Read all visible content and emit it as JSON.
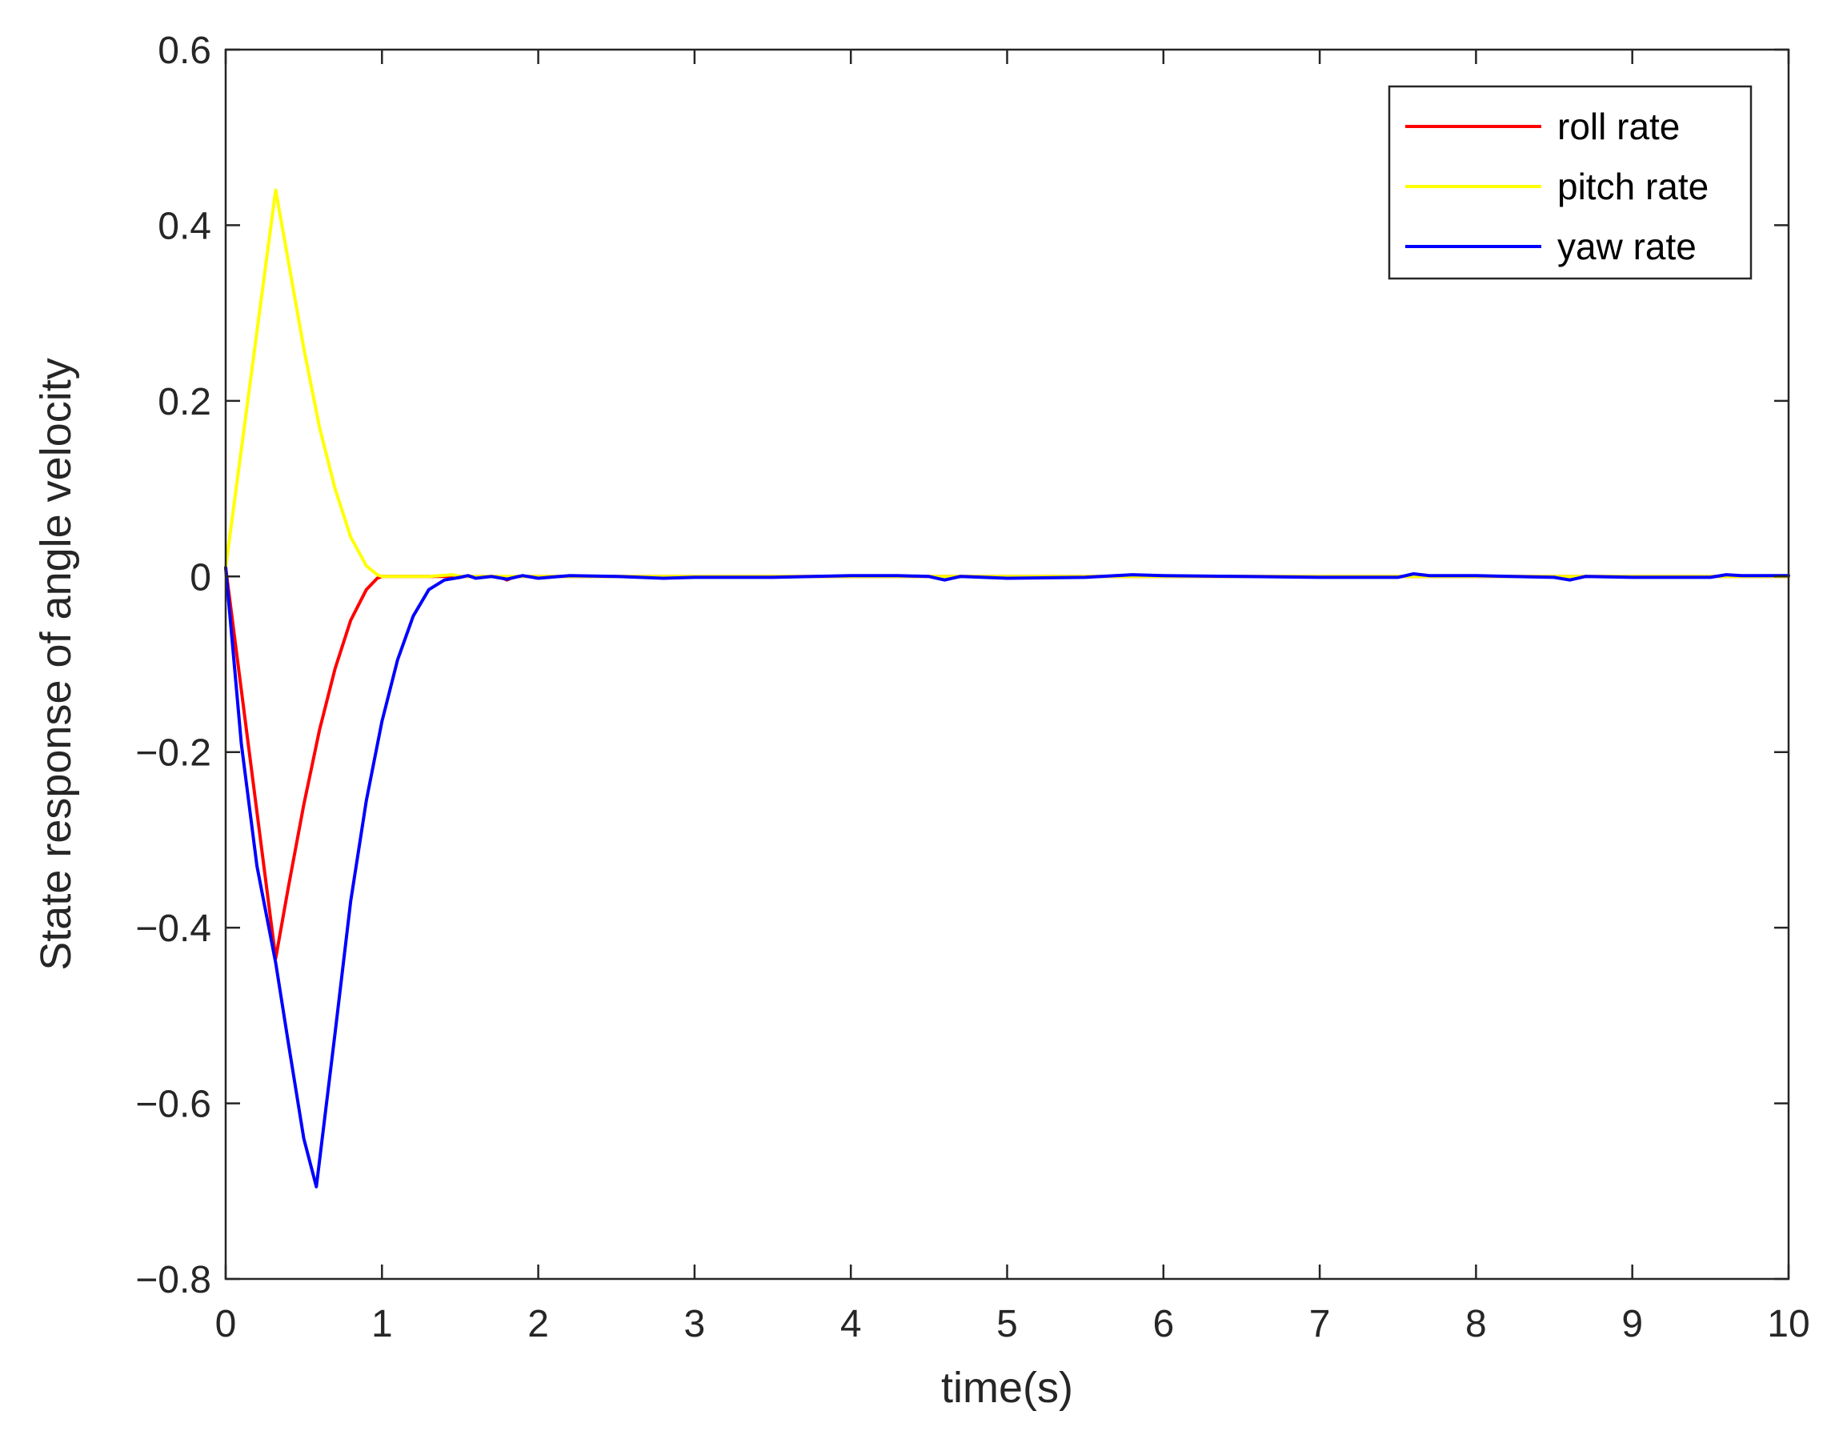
{
  "chart_data": {
    "type": "line",
    "title": "",
    "xlabel": "time(s)",
    "ylabel": "State response of angle velocity",
    "xlim": [
      0,
      10
    ],
    "ylim": [
      -0.8,
      0.6
    ],
    "xticks": [
      0,
      1,
      2,
      3,
      4,
      5,
      6,
      7,
      8,
      9,
      10
    ],
    "xtick_labels": [
      "0",
      "1",
      "2",
      "3",
      "4",
      "5",
      "6",
      "7",
      "8",
      "9",
      "10"
    ],
    "yticks": [
      -0.8,
      -0.6,
      -0.4,
      -0.2,
      0,
      0.2,
      0.4,
      0.6
    ],
    "ytick_labels": [
      "−0.8",
      "−0.6",
      "−0.4",
      "−0.2",
      "0",
      "0.2",
      "0.4",
      "0.6"
    ],
    "grid": false,
    "box": true,
    "legend_position": "top-right",
    "series": [
      {
        "name": "roll rate",
        "color": "#ff0000",
        "x": [
          0,
          0.32,
          0.4,
          0.5,
          0.6,
          0.7,
          0.8,
          0.9,
          0.97,
          1.0,
          1.1,
          1.3,
          1.5,
          1.75,
          1.8,
          1.85,
          2.0,
          3.0,
          4.0,
          5.0,
          6.0,
          7.0,
          8.0,
          9.0,
          10.0
        ],
        "y": [
          0.01,
          -0.435,
          -0.355,
          -0.26,
          -0.175,
          -0.105,
          -0.05,
          -0.015,
          -0.002,
          0,
          0,
          0,
          0,
          0,
          -0.004,
          0,
          0,
          0,
          0,
          0,
          0,
          0,
          0,
          0,
          0
        ]
      },
      {
        "name": "pitch rate",
        "color": "#ffff00",
        "x": [
          0,
          0.32,
          0.4,
          0.5,
          0.6,
          0.7,
          0.8,
          0.9,
          0.97,
          1.0,
          1.1,
          1.3,
          1.45,
          1.5,
          2.0,
          3.0,
          4.0,
          5.0,
          6.0,
          7.0,
          8.0,
          9.0,
          10.0
        ],
        "y": [
          0.01,
          0.44,
          0.36,
          0.26,
          0.17,
          0.1,
          0.045,
          0.012,
          0.002,
          0,
          0,
          0,
          0.002,
          0,
          0,
          0,
          0,
          0,
          0,
          0,
          0,
          0,
          0
        ]
      },
      {
        "name": "yaw rate",
        "color": "#0000ff",
        "x": [
          0,
          0.1,
          0.2,
          0.32,
          0.4,
          0.5,
          0.58,
          0.7,
          0.8,
          0.9,
          1.0,
          1.1,
          1.2,
          1.3,
          1.4,
          1.5,
          1.55,
          1.6,
          1.7,
          1.8,
          1.9,
          2.0,
          2.2,
          2.5,
          2.8,
          3.0,
          3.5,
          4.0,
          4.3,
          4.5,
          4.6,
          4.7,
          5.0,
          5.5,
          5.8,
          6.0,
          6.5,
          7.0,
          7.5,
          7.6,
          7.7,
          8.0,
          8.5,
          8.6,
          8.7,
          9.0,
          9.5,
          9.6,
          9.7,
          10.0
        ],
        "y": [
          0.01,
          -0.19,
          -0.33,
          -0.44,
          -0.53,
          -0.64,
          -0.695,
          -0.52,
          -0.37,
          -0.255,
          -0.165,
          -0.095,
          -0.045,
          -0.015,
          -0.004,
          -0.001,
          0.001,
          -0.002,
          0,
          -0.003,
          0.001,
          -0.002,
          0.001,
          0,
          -0.002,
          -0.001,
          -0.001,
          0.001,
          0.001,
          0,
          -0.004,
          0,
          -0.002,
          -0.001,
          0.002,
          0.001,
          0,
          -0.001,
          -0.001,
          0.003,
          0.001,
          0.001,
          -0.001,
          -0.004,
          0,
          -0.001,
          -0.001,
          0.002,
          0.001,
          0.001
        ]
      }
    ]
  }
}
